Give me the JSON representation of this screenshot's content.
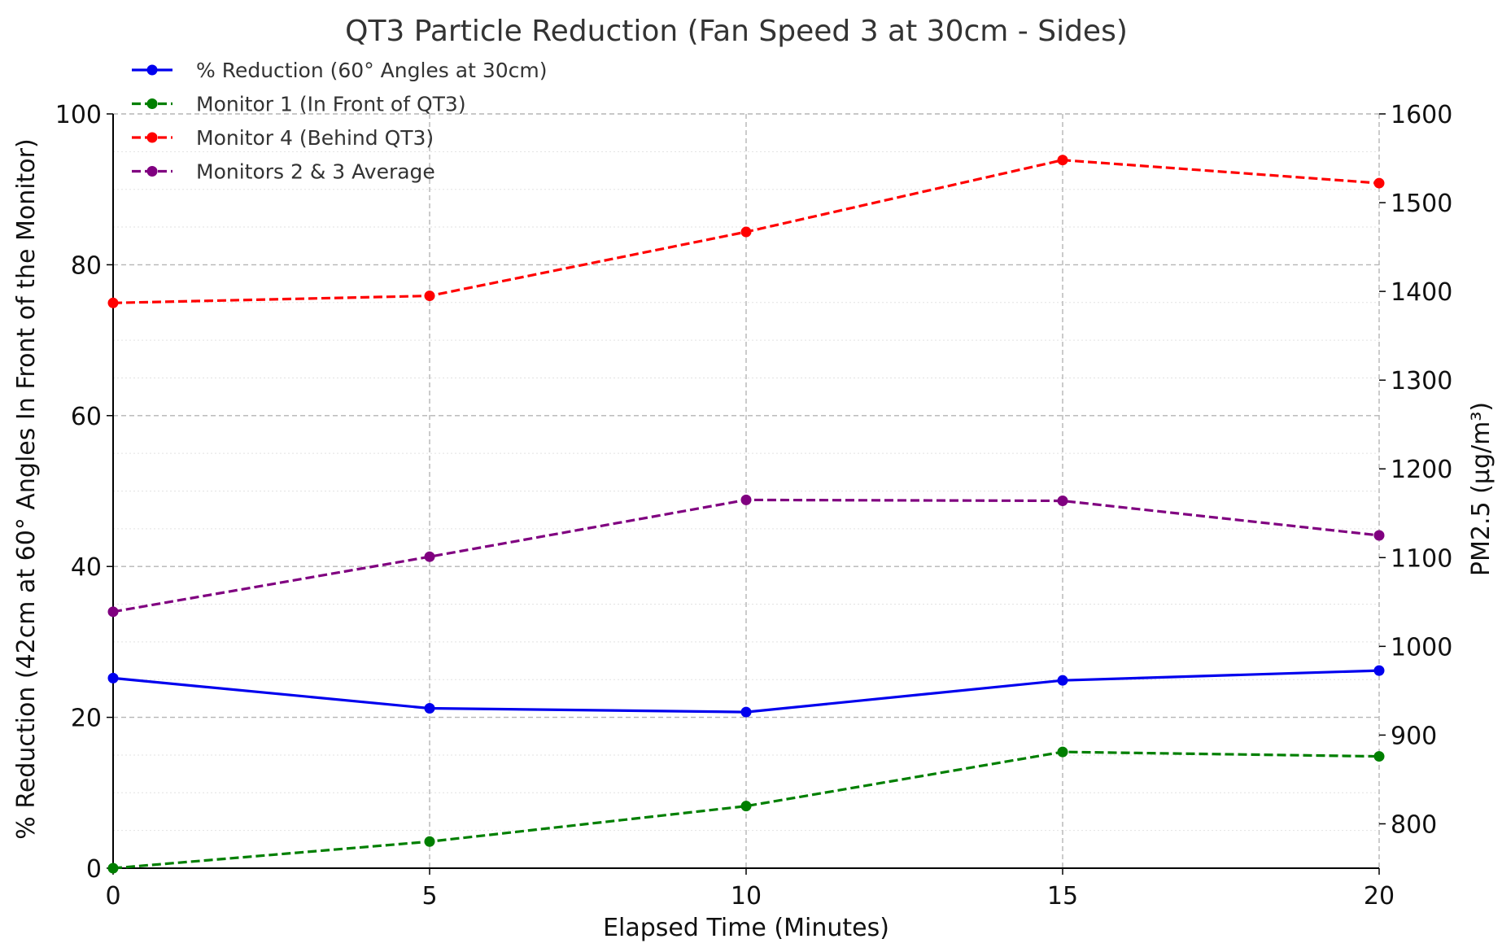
{
  "chart_data": {
    "type": "line",
    "title": "QT3 Particle Reduction (Fan Speed 3 at 30cm - Sides)",
    "xlabel": "Elapsed Time (Minutes)",
    "ylabel_left": "% Reduction (42cm at 60° Angles In Front of the Monitor)",
    "ylabel_right": "PM2.5 (µg/m³)",
    "x": [
      0,
      5,
      10,
      15,
      20
    ],
    "xlim": [
      0,
      20
    ],
    "ylim_left": [
      0,
      100
    ],
    "ylim_right": [
      750,
      1600
    ],
    "xticks": [
      "0",
      "5",
      "10",
      "15",
      "20"
    ],
    "yticks_left": [
      "0",
      "20",
      "40",
      "60",
      "80",
      "100"
    ],
    "yticks_right": [
      "800",
      "900",
      "1000",
      "1100",
      "1200",
      "1300",
      "1400",
      "1500",
      "1600"
    ],
    "grid": true,
    "legend_position": "top-left",
    "series": [
      {
        "name": "% Reduction (60° Angles at 30cm)",
        "axis": "left",
        "color": "#0000ee",
        "dash": "solid",
        "values": [
          25.2,
          21.2,
          20.7,
          24.9,
          26.2
        ]
      },
      {
        "name": "Monitor 1 (In Front of QT3)",
        "axis": "right",
        "color": "#007f00",
        "dash": "dashed",
        "values": [
          750,
          780,
          820,
          881,
          876
        ]
      },
      {
        "name": "Monitor 4 (Behind QT3)",
        "axis": "right",
        "color": "#ff0000",
        "dash": "dashed",
        "values": [
          1387,
          1395,
          1467,
          1548,
          1522
        ]
      },
      {
        "name": "Monitors 2 & 3 Average",
        "axis": "right",
        "color": "#800080",
        "dash": "dashed",
        "values": [
          1039,
          1101,
          1165,
          1164,
          1125
        ]
      }
    ]
  }
}
